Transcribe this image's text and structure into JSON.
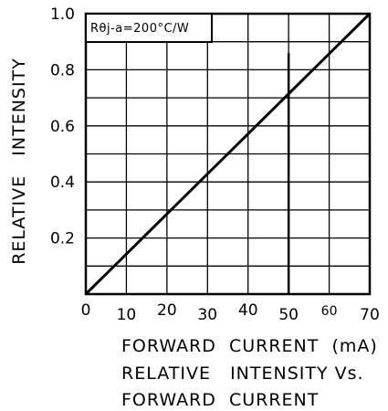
{
  "chart_data": {
    "type": "line",
    "title": "RELATIVE   INTENSITY Vs.",
    "subtitle": "FORWARD  CURRENT",
    "xlabel": "FORWARD  CURRENT  (mA)",
    "ylabel": "RELATIVE   INTENSITY",
    "annotation": "Rθj-a=200°C/W",
    "xlim": [
      0,
      70
    ],
    "ylim": [
      0,
      1.0
    ],
    "x_ticks": [
      "0",
      "10",
      "20",
      "30",
      "40",
      "50",
      "60",
      "70"
    ],
    "y_ticks": [
      "0.2",
      "0.4",
      "0.6",
      "0.8",
      "1.0"
    ],
    "grid": true,
    "series": [
      {
        "x": [
          0,
          70
        ],
        "y": [
          0,
          1.0
        ]
      }
    ],
    "marker_x": 50,
    "marker_top": 0.86
  }
}
